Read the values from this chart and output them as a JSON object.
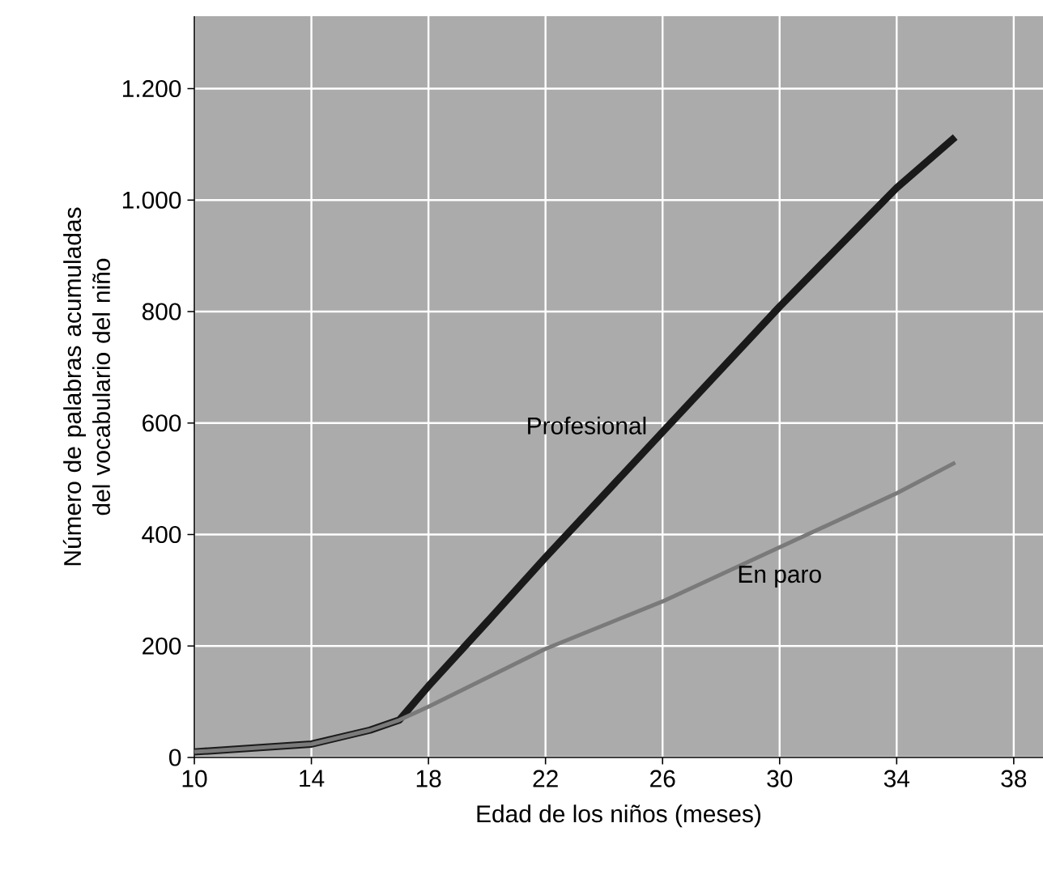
{
  "chart_data": {
    "type": "line",
    "xlabel": "Edad de los niños (meses)",
    "ylabel": "Número de palabras acumuladas del vocabulario del niño",
    "xlim": [
      10,
      39
    ],
    "ylim": [
      0,
      1330
    ],
    "xticks": [
      10,
      14,
      18,
      22,
      26,
      30,
      34,
      38
    ],
    "yticks": [
      0,
      200,
      400,
      600,
      800,
      {
        "value": 1000,
        "label": "1.000"
      },
      {
        "value": 1200,
        "label": "1.200"
      }
    ],
    "grid": true,
    "legend": false,
    "marker": "none",
    "line_style": "solid",
    "series": [
      {
        "name": "Profesional",
        "color": "#1a1a1a",
        "x": [
          10,
          14,
          16,
          17,
          18,
          20,
          22,
          26,
          30,
          34,
          36
        ],
        "values": [
          10,
          24,
          49,
          67,
          128,
          243,
          359,
          584,
          809,
          1022,
          1113
        ]
      },
      {
        "name": "En paro",
        "color": "#7a7a7a",
        "x": [
          10,
          14,
          16,
          17,
          18,
          22,
          26,
          30,
          34,
          36
        ],
        "values": [
          10,
          24,
          49,
          67,
          91,
          195,
          280,
          377,
          474,
          529
        ]
      }
    ]
  }
}
